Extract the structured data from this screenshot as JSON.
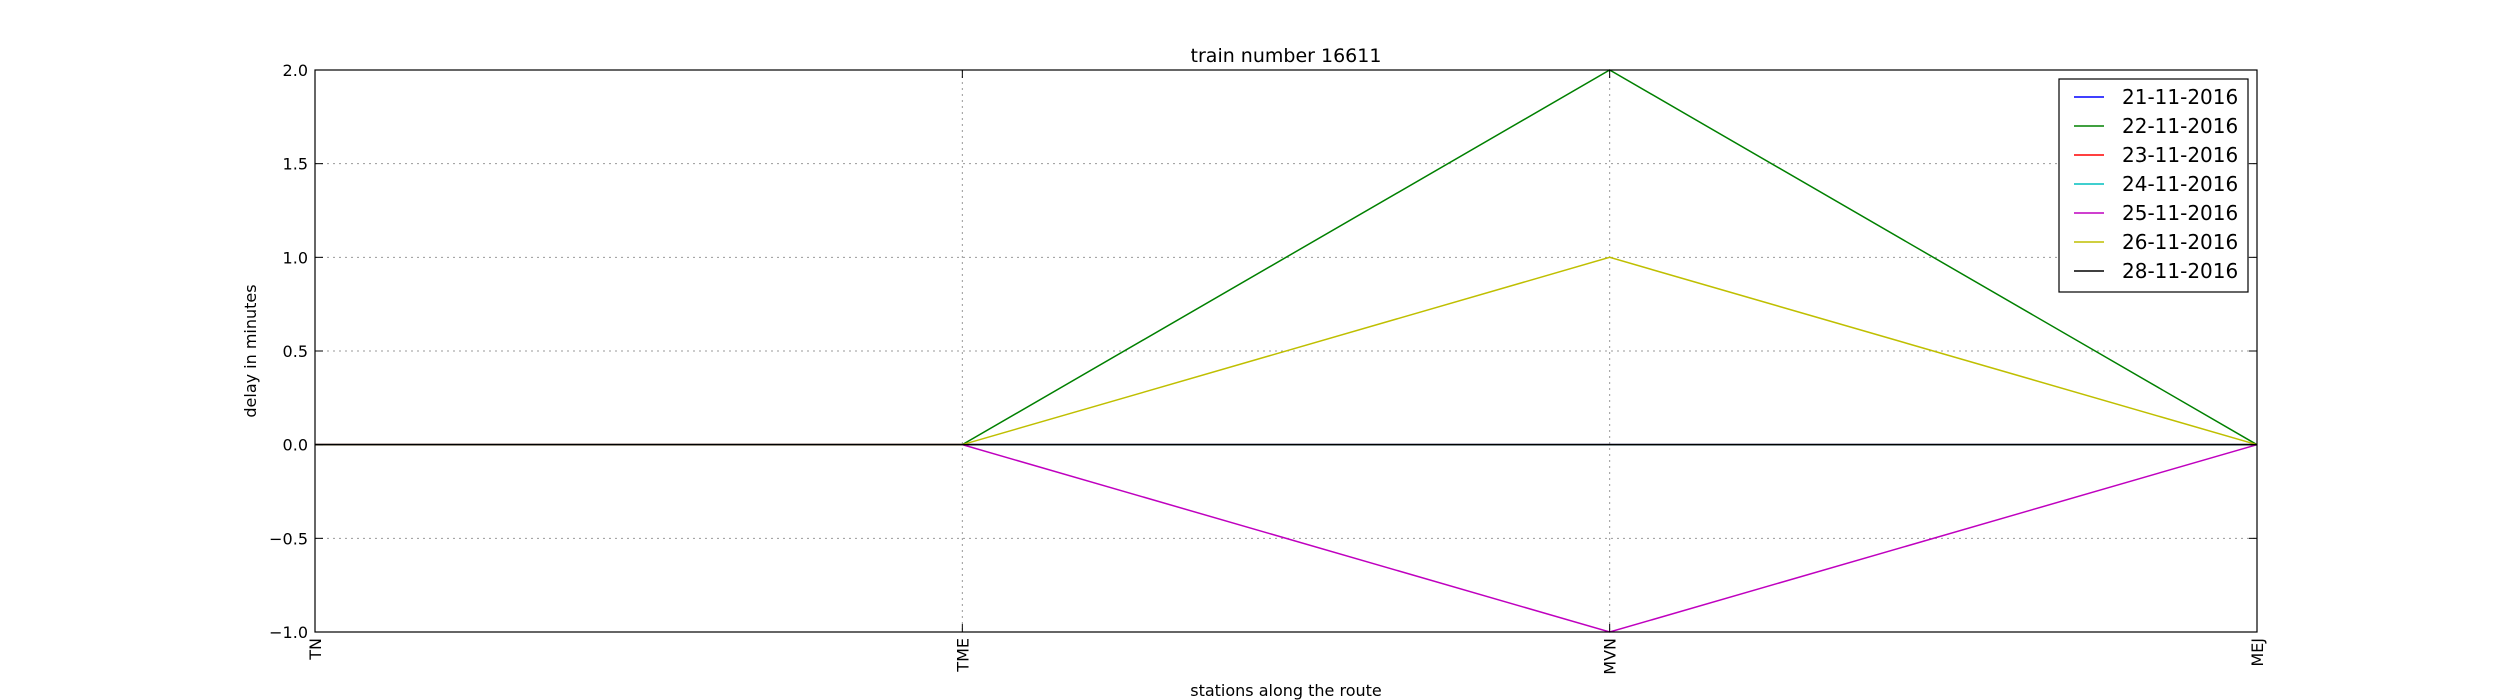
{
  "chart_data": {
    "type": "line",
    "title": "train number 16611",
    "xlabel": "stations along the route",
    "ylabel": "delay in minutes",
    "categories": [
      "TN",
      "TME",
      "MVN",
      "MEJ"
    ],
    "ylim": [
      -1.0,
      2.0
    ],
    "yticks": [
      "-1.0",
      "-0.5",
      "0.0",
      "0.5",
      "1.0",
      "1.5",
      "2.0"
    ],
    "grid": true,
    "legend_position": "top-right",
    "series": [
      {
        "name": "21-11-2016",
        "color": "#0000ff",
        "values": [
          0,
          0,
          0,
          0
        ]
      },
      {
        "name": "22-11-2016",
        "color": "#008000",
        "values": [
          0,
          0,
          2,
          0
        ]
      },
      {
        "name": "23-11-2016",
        "color": "#ff0000",
        "values": [
          0,
          0,
          0,
          0
        ]
      },
      {
        "name": "24-11-2016",
        "color": "#00bfbf",
        "values": [
          0,
          0,
          0,
          0
        ]
      },
      {
        "name": "25-11-2016",
        "color": "#bf00bf",
        "values": [
          0,
          0,
          -1,
          0
        ]
      },
      {
        "name": "26-11-2016",
        "color": "#bfbf00",
        "values": [
          0,
          0,
          1,
          0
        ]
      },
      {
        "name": "28-11-2016",
        "color": "#000000",
        "values": [
          0,
          0,
          0,
          0
        ]
      }
    ]
  }
}
